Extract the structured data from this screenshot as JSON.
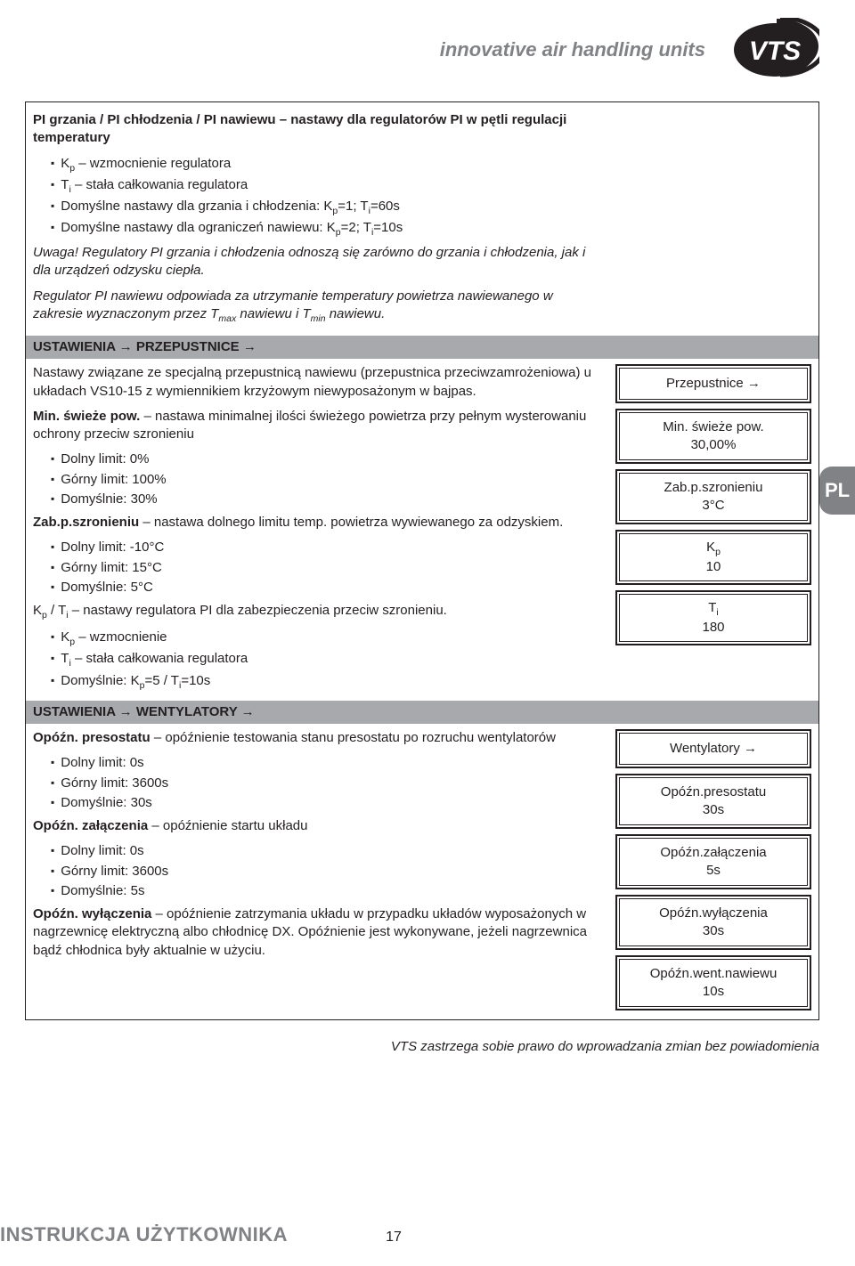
{
  "header": {
    "tagline": "innovative air handling units",
    "logo_text": "VTS",
    "logo_bg": "#231f20",
    "logo_fg": "#ffffff"
  },
  "lang_tab": "PL",
  "section1": {
    "title_html": "PI grzania / PI chłodzenia / PI nawiewu – nastawy dla regulatorów PI w pętli regulacji temperatury",
    "bullet1_html": "K<sub>p</sub> – wzmocnienie regulatora",
    "bullet2_html": "T<sub>i</sub> – stała całkowania regulatora",
    "bullet3_html": "Domyślne nastawy dla grzania i chłodzenia: K<sub>p</sub>=1; T<sub>i</sub>=60s",
    "bullet4_html": "Domyślne nastawy dla ograniczeń nawiewu: K<sub>p</sub>=2; T<sub>i</sub>=10s",
    "note1": "Uwaga! Regulatory PI grzania i chłodzenia odnoszą się zarówno do grzania i chłodzenia, jak i dla urządzeń odzysku ciepła.",
    "note2_html": "Regulator PI nawiewu odpowiada za utrzymanie temperatury powietrza nawiewanego w zakresie wyznaczonym przez T<sub>max</sub> nawiewu i T<sub>min</sub> nawiewu."
  },
  "bar1": "USTAWIENIA → PRZEPUSTNICE →",
  "section2": {
    "p1": "Nastawy związane ze specjalną przepustnicą nawiewu (przepustnica przeciwzamrożeniowa) u układach VS10-15 z wymiennikiem krzyżowym niewyposażonym w bajpas.",
    "p2_html_prefix": "Min. świeże pow.",
    "p2_rest": " – nastawa minimalnej ilości świeżego powietrza przy pełnym wysterowaniu ochrony przeciw szronieniu",
    "min_bullets": {
      "b1": "Dolny limit: 0%",
      "b2": "Górny limit: 100%",
      "b3": "Domyślnie: 30%"
    },
    "p3_html_prefix": "Zab.p.szronieniu",
    "p3_rest": " – nastawa dolnego limitu temp. powietrza wywiewanego za odzyskiem.",
    "frost_bullets": {
      "b1": "Dolny limit: -10°C",
      "b2": "Górny limit: 15°C",
      "b3": "Domyślnie: 5°C"
    },
    "p4_html": "K<sub>p</sub> / T<sub>i</sub> – nastawy regulatora PI dla zabezpieczenia przeciw szronieniu.",
    "pi_bullets": {
      "b1_html": "K<sub>p</sub> – wzmocnienie",
      "b2_html": "T<sub>i</sub> – stała całkowania regulatora",
      "b3_html": "Domyślnie: K<sub>p</sub>=5 / T<sub>i</sub>=10s"
    }
  },
  "bar2": "USTAWIENIA → WENTYLATORY →",
  "section3": {
    "p1_html_prefix": "Opóźn. presostatu",
    "p1_rest": " – opóźnienie testowania stanu presostatu po rozruchu wentylatorów",
    "pres_bullets": {
      "b1": "Dolny limit: 0s",
      "b2": "Górny limit: 3600s",
      "b3": "Domyślnie: 30s"
    },
    "p2_html_prefix": "Opóźn. załączenia",
    "p2_rest": " – opóźnienie startu układu",
    "on_bullets": {
      "b1": "Dolny limit: 0s",
      "b2": "Górny limit: 3600s",
      "b3": "Domyślnie: 5s"
    },
    "p3_html_prefix": "Opóźn. wyłączenia",
    "p3_rest": " – opóźnienie zatrzymania układu w przypadku układów wyposażonych w nagrzewnicę elektryczną albo chłodnicę DX. Opóźnienie jest wykonywane, jeżeli nagrzewnica bądź chłodnica były aktualnie w użyciu."
  },
  "displays1": {
    "d1": "Przepustnice →",
    "d2_l1": "Min. świeże pow.",
    "d2_l2": "30,00%",
    "d3_l1": "Zab.p.szronieniu",
    "d3_l2": "3°C",
    "d4_l1_html": "K<sub>p</sub>",
    "d4_l2": "10",
    "d5_l1_html": "T<sub>i</sub>",
    "d5_l2": "180"
  },
  "displays2": {
    "d1": "Wentylatory →",
    "d2_l1": "Opóźn.presostatu",
    "d2_l2": "30s",
    "d3_l1": "Opóźn.załączenia",
    "d3_l2": "5s",
    "d4_l1": "Opóźn.wyłączenia",
    "d4_l2": "30s",
    "d5_l1": "Opóźn.went.nawiewu",
    "d5_l2": "10s"
  },
  "footer_note": "VTS zastrzega sobie prawo do wprowadzania zmian bez powiadomienia",
  "doc_title": "INSTRUKCJA UŻYTKOWNIKA",
  "page_num": "17"
}
